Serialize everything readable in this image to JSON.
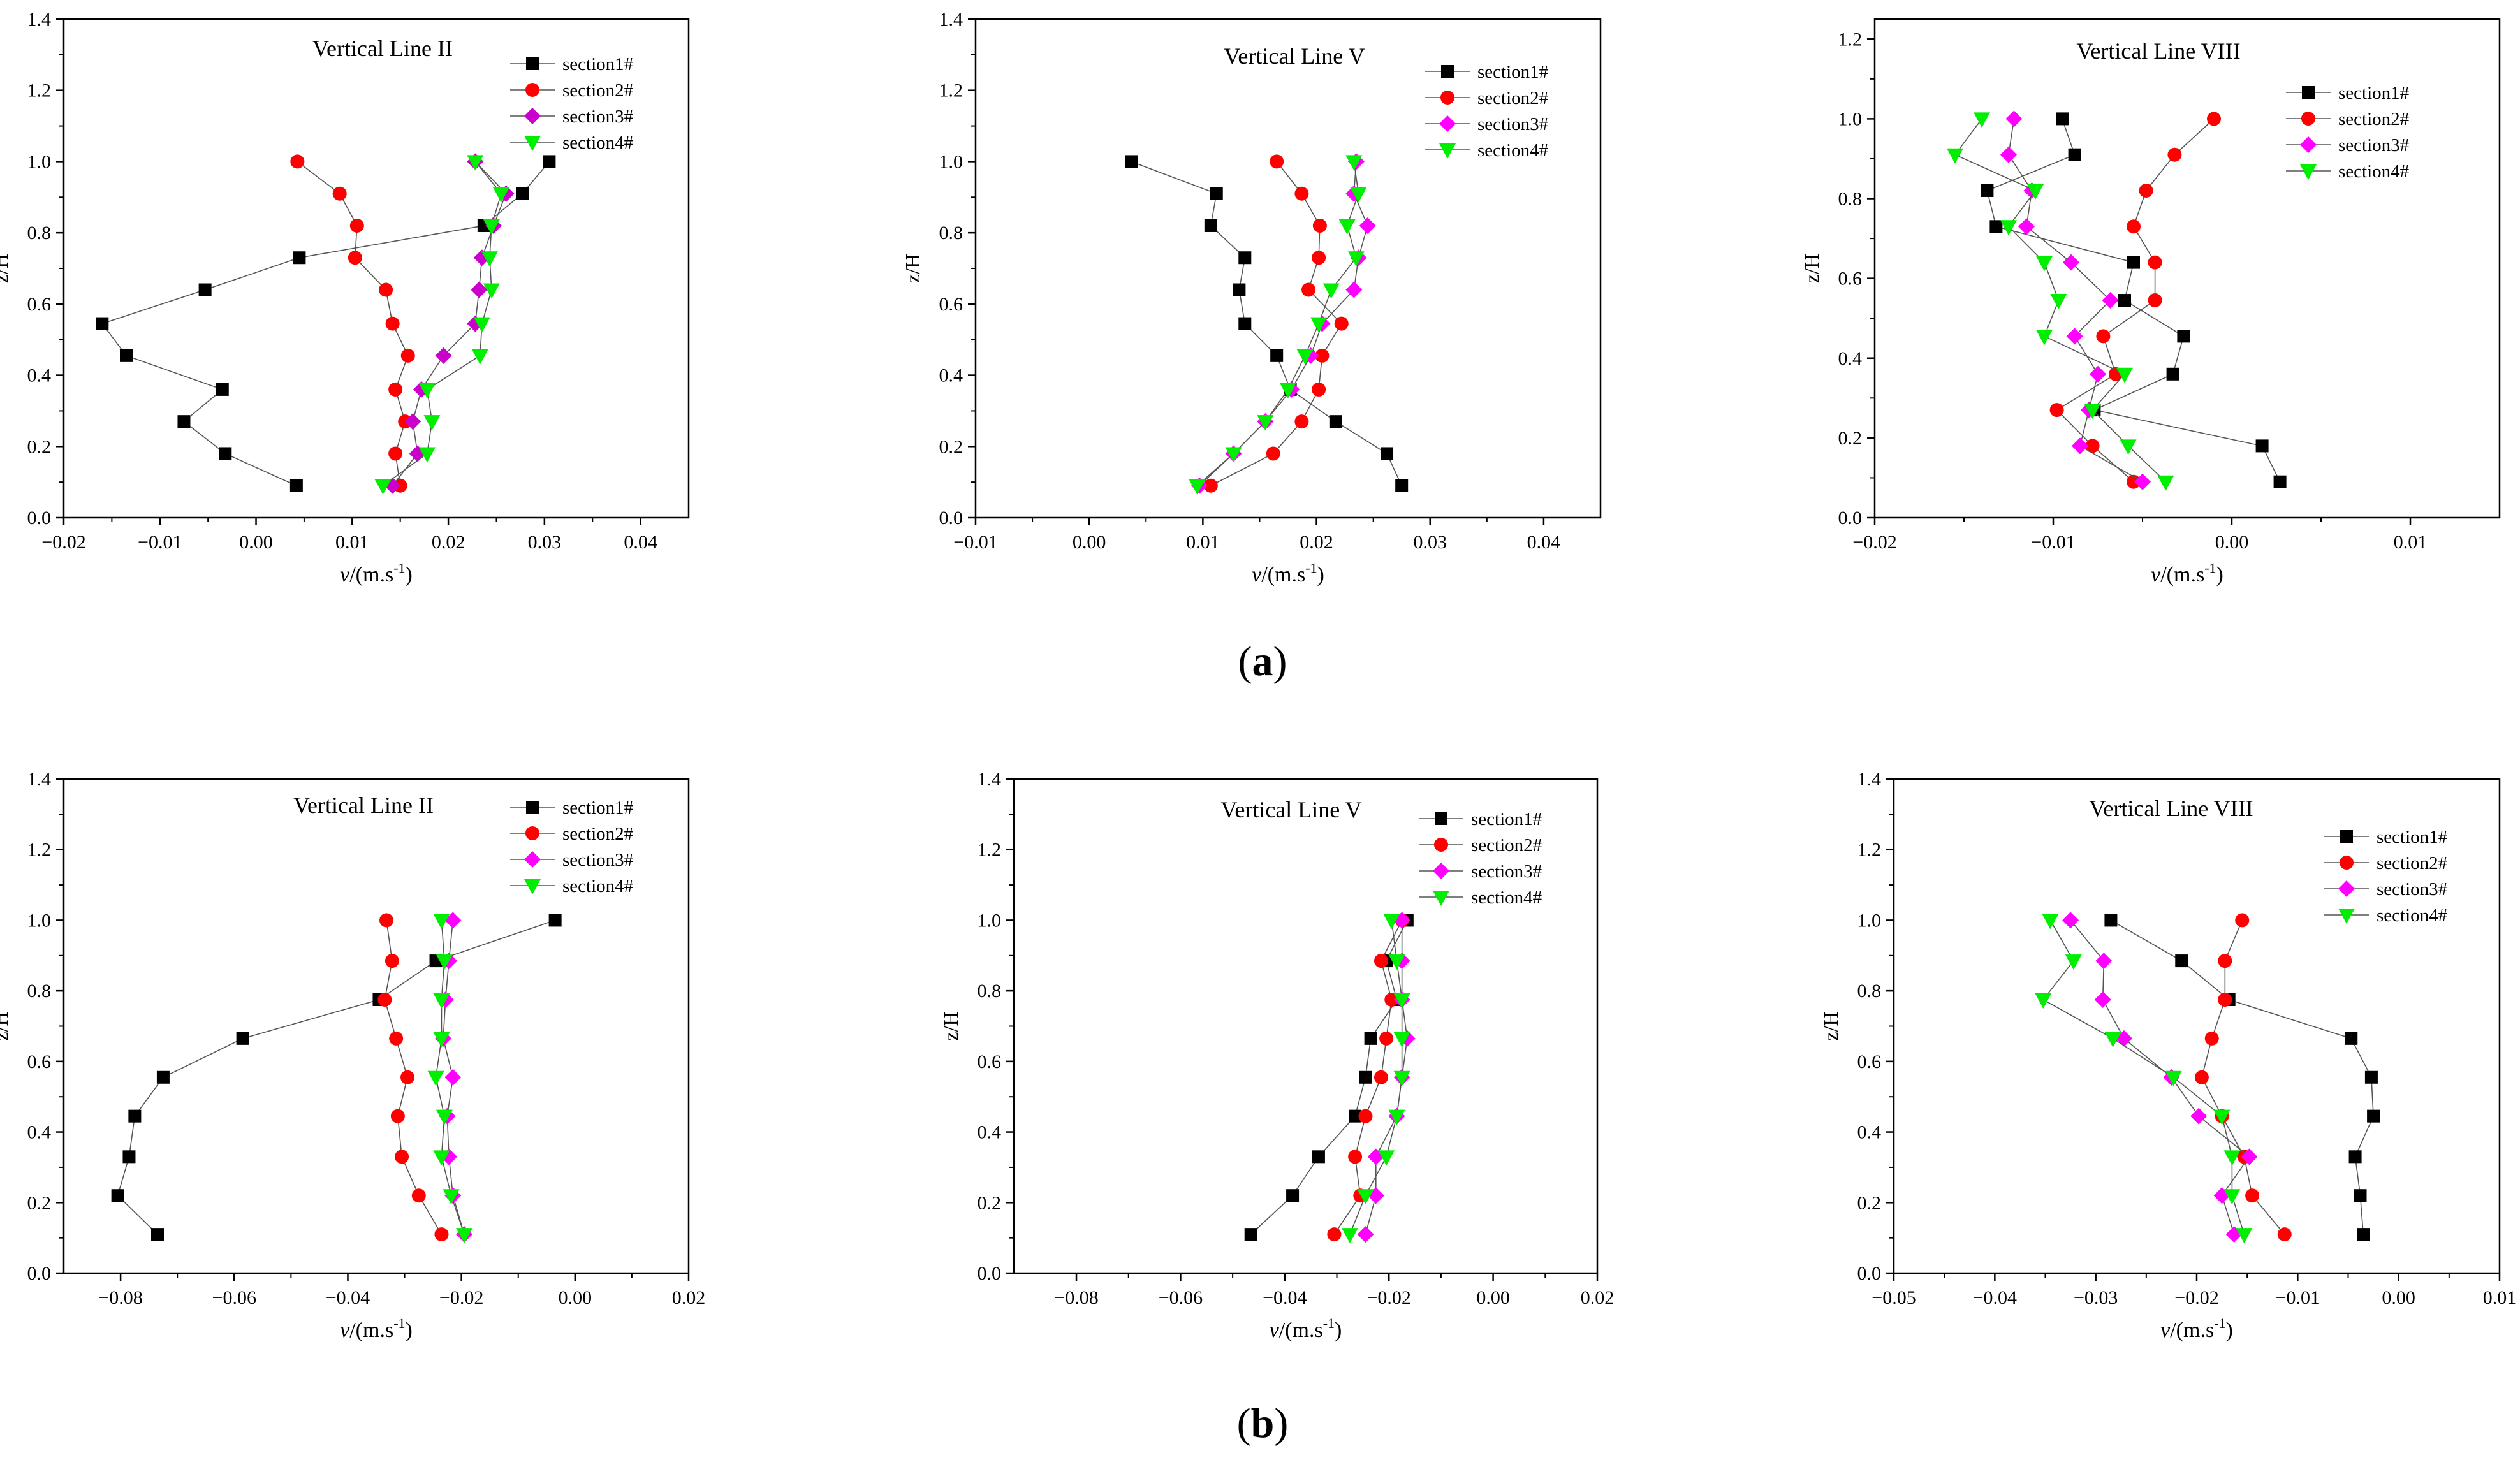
{
  "panels": [
    {
      "label": "(a)",
      "letter": "a"
    },
    {
      "label": "(b)",
      "letter": "b"
    }
  ],
  "chart_data": [
    {
      "type": "line",
      "title": "Vertical Line II",
      "xlabel": "v/(m.s-1)",
      "ylabel": "z/H",
      "xlim": [
        -0.02,
        0.045
      ],
      "ylim": [
        0,
        1.4
      ],
      "xticks": [
        -0.02,
        -0.01,
        0.0,
        0.01,
        0.02,
        0.03,
        0.04
      ],
      "xtick_labels": [
        "−0.02",
        "−0.01",
        "0.00",
        "0.01",
        "0.02",
        "0.03",
        "0.04"
      ],
      "yticks": [
        0.0,
        0.2,
        0.4,
        0.6,
        0.8,
        1.0,
        1.2,
        1.4
      ],
      "ytick_labels": [
        "0.0",
        "0.2",
        "0.4",
        "0.6",
        "0.8",
        "1.0",
        "1.2",
        "1.4"
      ],
      "series": [
        {
          "name": "section1#",
          "color": "#000000",
          "marker": "square",
          "x": [
            0.0042,
            -0.0032,
            -0.0075,
            -0.0035,
            -0.0135,
            -0.016,
            -0.0053,
            0.0045,
            0.0237,
            0.0277,
            0.0305
          ],
          "y": [
            0.09,
            0.18,
            0.27,
            0.36,
            0.455,
            0.545,
            0.64,
            0.73,
            0.82,
            0.91,
            1.0
          ]
        },
        {
          "name": "section2#",
          "color": "#ff0000",
          "marker": "circle",
          "x": [
            0.015,
            0.0145,
            0.0155,
            0.0145,
            0.0158,
            0.0142,
            0.0135,
            0.0103,
            0.0105,
            0.0087,
            0.0043
          ],
          "y": [
            0.09,
            0.18,
            0.27,
            0.36,
            0.455,
            0.545,
            0.64,
            0.73,
            0.82,
            0.91,
            1.0
          ]
        },
        {
          "name": "section3#",
          "color": "#cc00cc",
          "marker": "diamond",
          "x": [
            0.0142,
            0.0168,
            0.0163,
            0.0172,
            0.0195,
            0.0228,
            0.0232,
            0.0235,
            0.0247,
            0.026,
            0.0228
          ],
          "y": [
            0.09,
            0.18,
            0.27,
            0.36,
            0.455,
            0.545,
            0.64,
            0.73,
            0.82,
            0.91,
            1.0
          ]
        },
        {
          "name": "section4#",
          "color": "#00ee00",
          "marker": "tri-down",
          "x": [
            0.0132,
            0.0178,
            0.0183,
            0.0178,
            0.0233,
            0.0235,
            0.0245,
            0.0243,
            0.0245,
            0.0255,
            0.0228
          ],
          "y": [
            0.09,
            0.18,
            0.27,
            0.36,
            0.455,
            0.545,
            0.64,
            0.73,
            0.82,
            0.91,
            1.0
          ]
        }
      ]
    },
    {
      "type": "line",
      "title": "Vertical Line V",
      "xlabel": "v/(m.s-1)",
      "ylabel": "z/H",
      "xlim": [
        -0.01,
        0.045
      ],
      "ylim": [
        0,
        1.4
      ],
      "xticks": [
        -0.01,
        0.0,
        0.01,
        0.02,
        0.03,
        0.04
      ],
      "xtick_labels": [
        "−0.01",
        "0.00",
        "0.01",
        "0.02",
        "0.03",
        "0.04"
      ],
      "yticks": [
        0.0,
        0.2,
        0.4,
        0.6,
        0.8,
        1.0,
        1.2,
        1.4
      ],
      "ytick_labels": [
        "0.0",
        "0.2",
        "0.4",
        "0.6",
        "0.8",
        "1.0",
        "1.2",
        "1.4"
      ],
      "series": [
        {
          "name": "section1#",
          "color": "#000000",
          "marker": "square",
          "x": [
            0.0275,
            0.0262,
            0.0217,
            0.0177,
            0.0165,
            0.0137,
            0.0132,
            0.0137,
            0.0107,
            0.0112,
            0.0037
          ],
          "y": [
            0.09,
            0.18,
            0.27,
            0.36,
            0.455,
            0.545,
            0.64,
            0.73,
            0.82,
            0.91,
            1.0
          ]
        },
        {
          "name": "section2#",
          "color": "#ff0000",
          "marker": "circle",
          "x": [
            0.0107,
            0.0162,
            0.0187,
            0.0202,
            0.0205,
            0.0222,
            0.0193,
            0.0202,
            0.0203,
            0.0187,
            0.0165
          ],
          "y": [
            0.09,
            0.18,
            0.27,
            0.36,
            0.455,
            0.545,
            0.64,
            0.73,
            0.82,
            0.91,
            1.0
          ]
        },
        {
          "name": "section3#",
          "color": "#ff00ff",
          "marker": "diamond",
          "x": [
            0.0097,
            0.0127,
            0.0155,
            0.0178,
            0.0195,
            0.0205,
            0.0233,
            0.0237,
            0.0245,
            0.0233,
            0.0235
          ],
          "y": [
            0.09,
            0.18,
            0.27,
            0.36,
            0.455,
            0.545,
            0.64,
            0.73,
            0.82,
            0.91,
            1.0
          ]
        },
        {
          "name": "section4#",
          "color": "#00ee00",
          "marker": "tri-down",
          "x": [
            0.0095,
            0.0127,
            0.0155,
            0.0175,
            0.019,
            0.0202,
            0.0213,
            0.0235,
            0.0227,
            0.0237,
            0.0233
          ],
          "y": [
            0.09,
            0.18,
            0.27,
            0.36,
            0.455,
            0.545,
            0.64,
            0.73,
            0.82,
            0.91,
            1.0
          ]
        }
      ]
    },
    {
      "type": "line",
      "title": "Vertical Line VIII",
      "xlabel": "v/(m.s-1)",
      "ylabel": "z/H",
      "xlim": [
        -0.02,
        0.015
      ],
      "ylim": [
        0,
        1.25
      ],
      "xticks": [
        -0.02,
        -0.01,
        0.0,
        0.01
      ],
      "xtick_labels": [
        "−0.02",
        "−0.01",
        "0.00",
        "0.01"
      ],
      "yticks": [
        0.0,
        0.2,
        0.4,
        0.6,
        0.8,
        1.0,
        1.2
      ],
      "ytick_labels": [
        "0.0",
        "0.2",
        "0.4",
        "0.6",
        "0.8",
        "1.0",
        "1.2"
      ],
      "series": [
        {
          "name": "section1#",
          "color": "#000000",
          "marker": "square",
          "x": [
            0.0027,
            0.0017,
            -0.0077,
            -0.0033,
            -0.0027,
            -0.006,
            -0.0055,
            -0.0132,
            -0.0137,
            -0.0088,
            -0.0095
          ],
          "y": [
            0.09,
            0.18,
            0.27,
            0.36,
            0.455,
            0.545,
            0.64,
            0.73,
            0.82,
            0.91,
            1.0
          ]
        },
        {
          "name": "section2#",
          "color": "#ff0000",
          "marker": "circle",
          "x": [
            -0.0055,
            -0.0078,
            -0.0098,
            -0.0065,
            -0.0072,
            -0.0043,
            -0.0043,
            -0.0055,
            -0.0048,
            -0.0032,
            -0.001
          ],
          "y": [
            0.09,
            0.18,
            0.27,
            0.36,
            0.455,
            0.545,
            0.64,
            0.73,
            0.82,
            0.91,
            1.0
          ]
        },
        {
          "name": "section3#",
          "color": "#ff00ff",
          "marker": "diamond",
          "x": [
            -0.005,
            -0.0085,
            -0.008,
            -0.0075,
            -0.0088,
            -0.0068,
            -0.009,
            -0.0115,
            -0.0112,
            -0.0125,
            -0.0122
          ],
          "y": [
            0.09,
            0.18,
            0.27,
            0.36,
            0.455,
            0.545,
            0.64,
            0.73,
            0.82,
            0.91,
            1.0
          ]
        },
        {
          "name": "section4#",
          "color": "#00ee00",
          "marker": "tri-down",
          "x": [
            -0.0037,
            -0.0058,
            -0.0078,
            -0.006,
            -0.0105,
            -0.0097,
            -0.0105,
            -0.0125,
            -0.011,
            -0.0155,
            -0.014
          ],
          "y": [
            0.09,
            0.18,
            0.27,
            0.36,
            0.455,
            0.545,
            0.64,
            0.73,
            0.82,
            0.91,
            1.0
          ]
        }
      ]
    },
    {
      "type": "line",
      "title": "Vertical Line II",
      "xlabel": "v/(m.s-1)",
      "ylabel": "z/H",
      "xlim": [
        -0.09,
        0.02
      ],
      "ylim": [
        0,
        1.4
      ],
      "xticks": [
        -0.08,
        -0.06,
        -0.04,
        -0.02,
        0.0,
        0.02
      ],
      "xtick_labels": [
        "−0.08",
        "−0.06",
        "−0.04",
        "−0.02",
        "0.00",
        "0.02"
      ],
      "yticks": [
        0.0,
        0.2,
        0.4,
        0.6,
        0.8,
        1.0,
        1.2,
        1.4
      ],
      "ytick_labels": [
        "0.0",
        "0.2",
        "0.4",
        "0.6",
        "0.8",
        "1.0",
        "1.2",
        "1.4"
      ],
      "series": [
        {
          "name": "section1#",
          "color": "#000000",
          "marker": "square",
          "x": [
            -0.0735,
            -0.0805,
            -0.0785,
            -0.0775,
            -0.0725,
            -0.0585,
            -0.0345,
            -0.0245,
            -0.0035
          ],
          "y": [
            0.11,
            0.22,
            0.33,
            0.445,
            0.555,
            0.665,
            0.775,
            0.885,
            1.0
          ]
        },
        {
          "name": "section2#",
          "color": "#ff0000",
          "marker": "circle",
          "x": [
            -0.0235,
            -0.0275,
            -0.0305,
            -0.0312,
            -0.0295,
            -0.0315,
            -0.0335,
            -0.0322,
            -0.0332
          ],
          "y": [
            0.11,
            0.22,
            0.33,
            0.445,
            0.555,
            0.665,
            0.775,
            0.885,
            1.0
          ]
        },
        {
          "name": "section3#",
          "color": "#ff00ff",
          "marker": "diamond",
          "x": [
            -0.0195,
            -0.0215,
            -0.0222,
            -0.0225,
            -0.0215,
            -0.0232,
            -0.0228,
            -0.0222,
            -0.0215
          ],
          "y": [
            0.11,
            0.22,
            0.33,
            0.445,
            0.555,
            0.665,
            0.775,
            0.885,
            1.0
          ]
        },
        {
          "name": "section4#",
          "color": "#00ee00",
          "marker": "tri-down",
          "x": [
            -0.0195,
            -0.0218,
            -0.0235,
            -0.023,
            -0.0245,
            -0.0235,
            -0.0235,
            -0.023,
            -0.0235
          ],
          "y": [
            0.11,
            0.22,
            0.33,
            0.445,
            0.555,
            0.665,
            0.775,
            0.885,
            1.0
          ]
        }
      ]
    },
    {
      "type": "line",
      "title": "Vertical Line V",
      "xlabel": "v/(m.s-1)",
      "ylabel": "z/H",
      "xlim": [
        -0.092,
        0.02
      ],
      "ylim": [
        0,
        1.4
      ],
      "xticks": [
        -0.08,
        -0.06,
        -0.04,
        -0.02,
        0.0,
        0.02
      ],
      "xtick_labels": [
        "−0.08",
        "−0.06",
        "−0.04",
        "−0.02",
        "0.00",
        "0.02"
      ],
      "yticks": [
        0.0,
        0.2,
        0.4,
        0.6,
        0.8,
        1.0,
        1.2,
        1.4
      ],
      "ytick_labels": [
        "0.0",
        "0.2",
        "0.4",
        "0.6",
        "0.8",
        "1.0",
        "1.2",
        "1.4"
      ],
      "series": [
        {
          "name": "section1#",
          "color": "#000000",
          "marker": "square",
          "x": [
            -0.0465,
            -0.0385,
            -0.0335,
            -0.0265,
            -0.0245,
            -0.0235,
            -0.0185,
            -0.0205,
            -0.0165
          ],
          "y": [
            0.11,
            0.22,
            0.33,
            0.445,
            0.555,
            0.665,
            0.775,
            0.885,
            1.0
          ]
        },
        {
          "name": "section2#",
          "color": "#ff0000",
          "marker": "circle",
          "x": [
            -0.0305,
            -0.0255,
            -0.0265,
            -0.0245,
            -0.0215,
            -0.0205,
            -0.0195,
            -0.0215,
            -0.0175
          ],
          "y": [
            0.11,
            0.22,
            0.33,
            0.445,
            0.555,
            0.665,
            0.775,
            0.885,
            1.0
          ]
        },
        {
          "name": "section3#",
          "color": "#ff00ff",
          "marker": "diamond",
          "x": [
            -0.0245,
            -0.0225,
            -0.0225,
            -0.0185,
            -0.0175,
            -0.0165,
            -0.0175,
            -0.0175,
            -0.0175
          ],
          "y": [
            0.11,
            0.22,
            0.33,
            0.445,
            0.555,
            0.665,
            0.775,
            0.885,
            1.0
          ]
        },
        {
          "name": "section4#",
          "color": "#00ee00",
          "marker": "tri-down",
          "x": [
            -0.0275,
            -0.0245,
            -0.0205,
            -0.0185,
            -0.0175,
            -0.0175,
            -0.0175,
            -0.0185,
            -0.0195
          ],
          "y": [
            0.11,
            0.22,
            0.33,
            0.445,
            0.555,
            0.665,
            0.775,
            0.885,
            1.0
          ]
        }
      ]
    },
    {
      "type": "line",
      "title": "Vertical Line VIII",
      "xlabel": "v/(m.s-1)",
      "ylabel": "z/H",
      "xlim": [
        -0.05,
        0.01
      ],
      "ylim": [
        0,
        1.4
      ],
      "xticks": [
        -0.05,
        -0.04,
        -0.03,
        -0.02,
        -0.01,
        0.0,
        0.01
      ],
      "xtick_labels": [
        "−0.05",
        "−0.04",
        "−0.03",
        "−0.02",
        "−0.01",
        "0.00",
        "0.01"
      ],
      "yticks": [
        0.0,
        0.2,
        0.4,
        0.6,
        0.8,
        1.0,
        1.2,
        1.4
      ],
      "ytick_labels": [
        "0.0",
        "0.2",
        "0.4",
        "0.6",
        "0.8",
        "1.0",
        "1.2",
        "1.4"
      ],
      "series": [
        {
          "name": "section1#",
          "color": "#000000",
          "marker": "square",
          "x": [
            -0.0035,
            -0.0038,
            -0.0043,
            -0.0025,
            -0.0027,
            -0.0047,
            -0.0168,
            -0.0215,
            -0.0285
          ],
          "y": [
            0.11,
            0.22,
            0.33,
            0.445,
            0.555,
            0.665,
            0.775,
            0.885,
            1.0
          ]
        },
        {
          "name": "section2#",
          "color": "#ff0000",
          "marker": "circle",
          "x": [
            -0.0113,
            -0.0145,
            -0.0153,
            -0.0175,
            -0.0195,
            -0.0185,
            -0.0172,
            -0.0172,
            -0.0155
          ],
          "y": [
            0.11,
            0.22,
            0.33,
            0.445,
            0.555,
            0.665,
            0.775,
            0.885,
            1.0
          ]
        },
        {
          "name": "section3#",
          "color": "#ff00ff",
          "marker": "diamond",
          "x": [
            -0.0163,
            -0.0175,
            -0.0148,
            -0.0198,
            -0.0225,
            -0.0272,
            -0.0293,
            -0.0292,
            -0.0325
          ],
          "y": [
            0.11,
            0.22,
            0.33,
            0.445,
            0.555,
            0.665,
            0.775,
            0.885,
            1.0
          ]
        },
        {
          "name": "section4#",
          "color": "#00ee00",
          "marker": "tri-down",
          "x": [
            -0.0153,
            -0.0165,
            -0.0165,
            -0.0175,
            -0.0223,
            -0.0283,
            -0.0352,
            -0.0322,
            -0.0345
          ],
          "y": [
            0.11,
            0.22,
            0.33,
            0.445,
            0.555,
            0.665,
            0.775,
            0.885,
            1.0
          ]
        }
      ]
    }
  ]
}
